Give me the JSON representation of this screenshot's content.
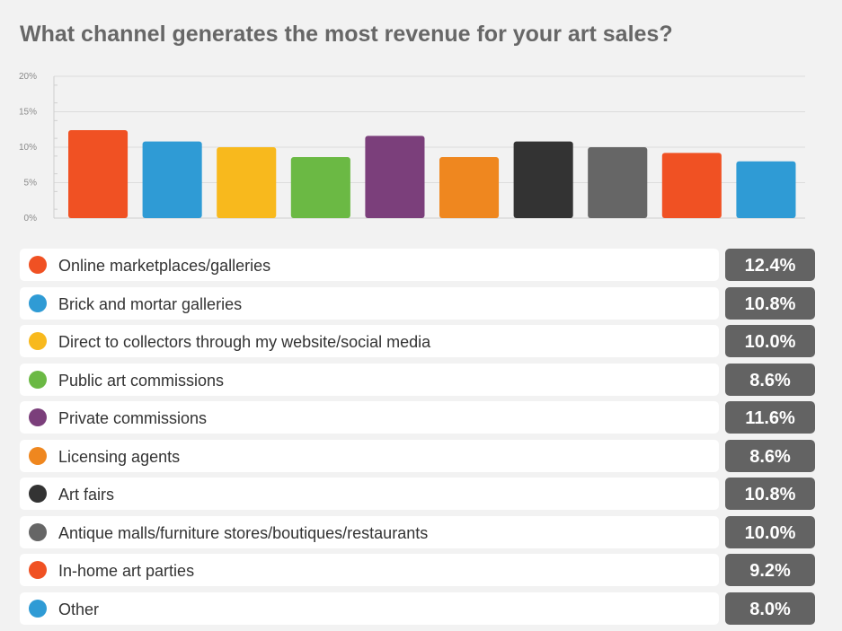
{
  "title": "What channel generates the most revenue for your art sales?",
  "chart_data": {
    "type": "bar",
    "title": "What channel generates the most revenue for your art sales?",
    "categories": [
      "Online marketplaces/galleries",
      "Brick and mortar galleries",
      "Direct to collectors through my website/social media",
      "Public art commissions",
      "Private commissions",
      "Licensing agents",
      "Art fairs",
      "Antique malls/furniture stores/boutiques/restaurants",
      "In-home art parties",
      "Other"
    ],
    "values": [
      12.4,
      10.8,
      10.0,
      8.6,
      11.6,
      8.6,
      10.8,
      10.0,
      9.2,
      8.0
    ],
    "value_labels": [
      "12.4%",
      "10.8%",
      "10.0%",
      "8.6%",
      "11.6%",
      "8.6%",
      "10.8%",
      "10.0%",
      "9.2%",
      "8.0%"
    ],
    "colors": [
      "#f05123",
      "#2f9bd5",
      "#f8b91d",
      "#6bb944",
      "#7b3f7b",
      "#ef871f",
      "#333333",
      "#666666",
      "#f05123",
      "#2f9bd5"
    ],
    "yticks": [
      "0%",
      "5%",
      "10%",
      "15%",
      "20%"
    ],
    "ylim": [
      0,
      20
    ],
    "xlabel": "",
    "ylabel": "",
    "grid": true,
    "legend": "below"
  }
}
